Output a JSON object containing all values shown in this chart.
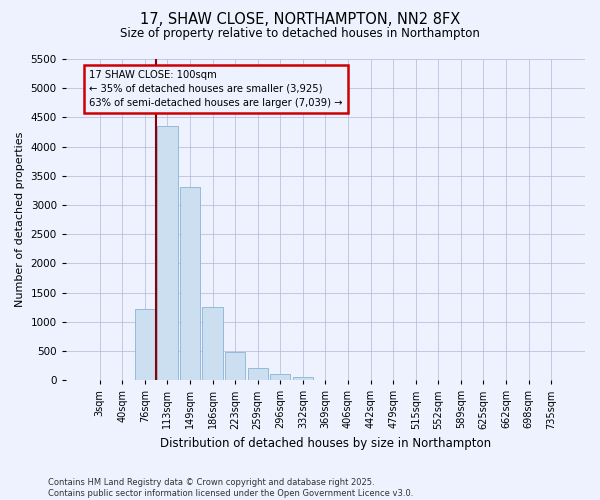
{
  "title1": "17, SHAW CLOSE, NORTHAMPTON, NN2 8FX",
  "title2": "Size of property relative to detached houses in Northampton",
  "xlabel": "Distribution of detached houses by size in Northampton",
  "ylabel": "Number of detached properties",
  "categories": [
    "3sqm",
    "40sqm",
    "76sqm",
    "113sqm",
    "149sqm",
    "186sqm",
    "223sqm",
    "259sqm",
    "296sqm",
    "332sqm",
    "369sqm",
    "406sqm",
    "442sqm",
    "479sqm",
    "515sqm",
    "552sqm",
    "589sqm",
    "625sqm",
    "662sqm",
    "698sqm",
    "735sqm"
  ],
  "values": [
    0,
    0,
    1220,
    4350,
    3300,
    1250,
    490,
    200,
    100,
    60,
    0,
    0,
    0,
    0,
    0,
    0,
    0,
    0,
    0,
    0,
    0
  ],
  "bar_color": "#ccdff0",
  "bar_edge_color": "#8ab4d4",
  "vline_color": "#8b0000",
  "vline_pos": 2.5,
  "ylim": [
    0,
    5500
  ],
  "yticks": [
    0,
    500,
    1000,
    1500,
    2000,
    2500,
    3000,
    3500,
    4000,
    4500,
    5000,
    5500
  ],
  "annotation_title": "17 SHAW CLOSE: 100sqm",
  "annotation_line1": "← 35% of detached houses are smaller (3,925)",
  "annotation_line2": "63% of semi-detached houses are larger (7,039) →",
  "annotation_box_color": "#cc0000",
  "footer1": "Contains HM Land Registry data © Crown copyright and database right 2025.",
  "footer2": "Contains public sector information licensed under the Open Government Licence v3.0.",
  "bg_color": "#eef2ff",
  "grid_color": "#b0b8d8"
}
